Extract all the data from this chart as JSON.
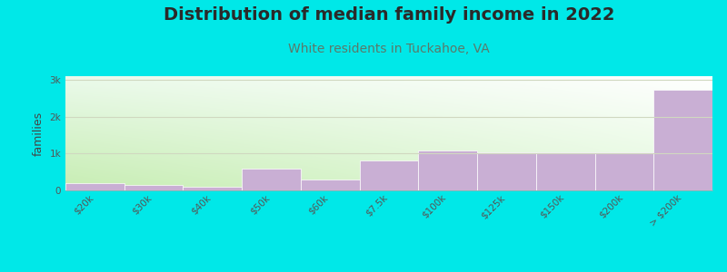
{
  "title": "Distribution of median family income in 2022",
  "subtitle": "White residents in Tuckahoe, VA",
  "ylabel": "families",
  "categories": [
    "$20k",
    "$30k",
    "$40k",
    "$50k",
    "$60k",
    "$7.5k",
    "$100k",
    "$125k",
    "$150k",
    "$200k",
    "> $200k"
  ],
  "values": [
    185,
    145,
    110,
    580,
    290,
    820,
    1080,
    1040,
    1030,
    1030,
    2720
  ],
  "bar_color": "#c9afd4",
  "bar_edgecolor": "white",
  "background_color": "#00e8e8",
  "title_color": "#2a2a2a",
  "subtitle_color": "#5a7a6a",
  "ylabel_color": "#444444",
  "ytick_labels": [
    "0",
    "1k",
    "2k",
    "3k"
  ],
  "ytick_values": [
    0,
    1000,
    2000,
    3000
  ],
  "ylim": [
    0,
    3100
  ],
  "title_fontsize": 14,
  "subtitle_fontsize": 10,
  "ylabel_fontsize": 9,
  "tick_fontsize": 7.5,
  "grid_color": "#d0d8c0",
  "gradient_colors_bottom": [
    "#c8e8b0",
    "#e8f8e0"
  ],
  "gradient_colors_top": [
    "#f0fff0",
    "#ffffff"
  ]
}
